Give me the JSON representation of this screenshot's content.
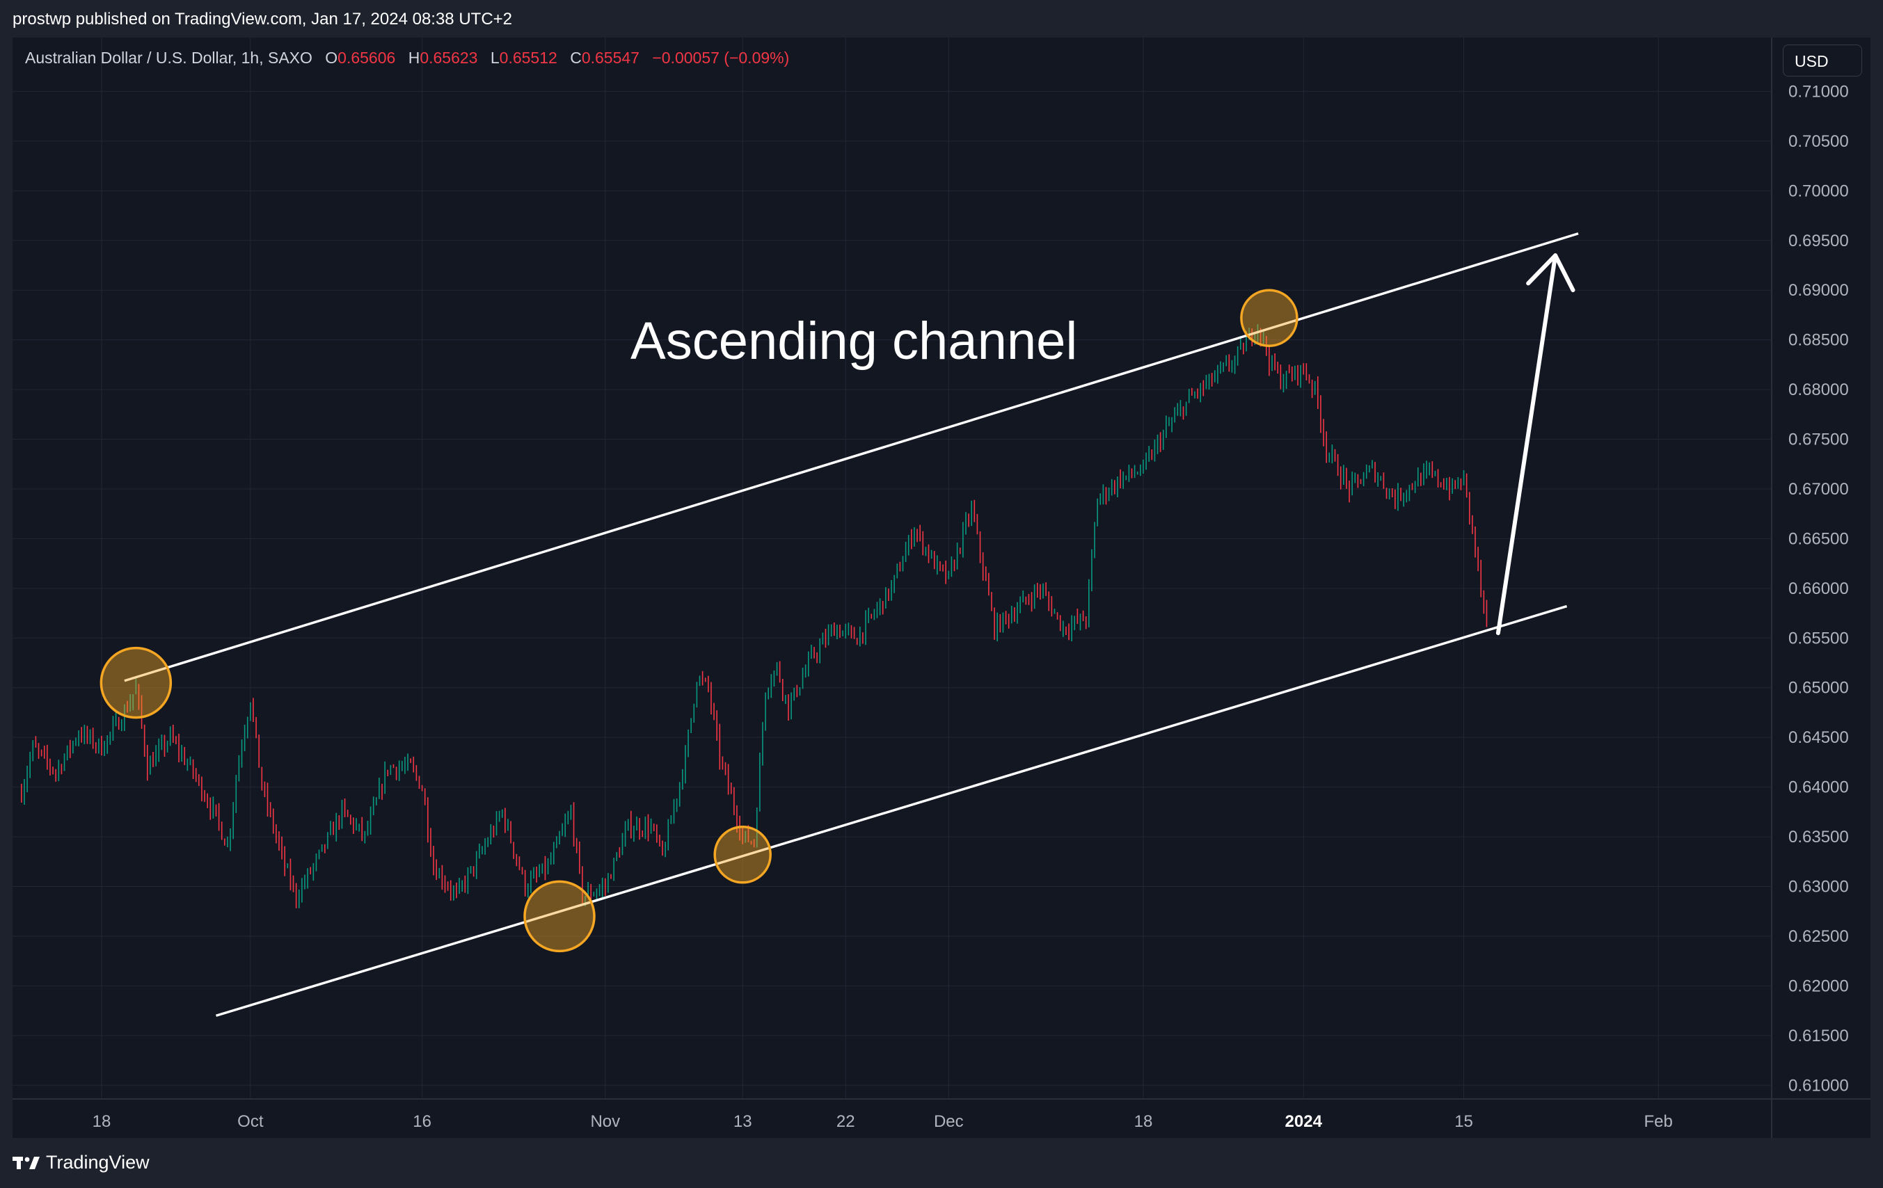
{
  "header": {
    "publish_line": "prostwp published on TradingView.com, Jan 17, 2024 08:38 UTC+2"
  },
  "legend": {
    "symbol": "Australian Dollar / U.S. Dollar, 1h, SAXO",
    "open_label": "O",
    "open": "0.65606",
    "high_label": "H",
    "high": "0.65623",
    "low_label": "L",
    "low": "0.65512",
    "close_label": "C",
    "close": "0.65547",
    "change": "−0.00057 (−0.09%)"
  },
  "currency_button": "USD",
  "footer": {
    "brand": "TradingView"
  },
  "annotation": {
    "text": "Ascending channel"
  },
  "colors": {
    "background": "#131722",
    "up": "#089981",
    "down": "#f23645",
    "grid": "#232734",
    "channel": "#ffffff",
    "marker": "#f5a623"
  },
  "chart_data": {
    "type": "candlestick",
    "title": "Australian Dollar / U.S. Dollar, 1h, SAXO",
    "xlabel": "",
    "ylabel": "",
    "ylim": [
      0.6075,
      0.7115
    ],
    "y_ticks": [
      "0.71000",
      "0.70500",
      "0.70000",
      "0.69500",
      "0.69000",
      "0.68500",
      "0.68000",
      "0.67500",
      "0.67000",
      "0.66500",
      "0.66000",
      "0.65500",
      "0.65000",
      "0.64500",
      "0.64000",
      "0.63500",
      "0.63000",
      "0.62500",
      "0.62000",
      "0.61500",
      "0.61000"
    ],
    "x_ticks": [
      {
        "label": "18",
        "date": "2023-09-18"
      },
      {
        "label": "Oct",
        "date": "2023-10-01"
      },
      {
        "label": "16",
        "date": "2023-10-16"
      },
      {
        "label": "Nov",
        "date": "2023-11-01"
      },
      {
        "label": "13",
        "date": "2023-11-13"
      },
      {
        "label": "22",
        "date": "2023-11-22"
      },
      {
        "label": "Dec",
        "date": "2023-12-01"
      },
      {
        "label": "18",
        "date": "2023-12-18"
      },
      {
        "label": "2024",
        "date": "2024-01-01",
        "bold": true
      },
      {
        "label": "15",
        "date": "2024-01-15"
      },
      {
        "label": "Feb",
        "date": "2024-02-01"
      }
    ],
    "price_path": [
      {
        "date": "2023-09-11",
        "price": 0.6395
      },
      {
        "date": "2023-09-12",
        "price": 0.644
      },
      {
        "date": "2023-09-14",
        "price": 0.6415
      },
      {
        "date": "2023-09-16",
        "price": 0.6455
      },
      {
        "date": "2023-09-18",
        "price": 0.644
      },
      {
        "date": "2023-09-20",
        "price": 0.6475
      },
      {
        "date": "2023-09-21",
        "price": 0.65
      },
      {
        "date": "2023-09-22",
        "price": 0.642
      },
      {
        "date": "2023-09-24",
        "price": 0.645
      },
      {
        "date": "2023-09-26",
        "price": 0.6415
      },
      {
        "date": "2023-09-28",
        "price": 0.637
      },
      {
        "date": "2023-09-29",
        "price": 0.634
      },
      {
        "date": "2023-09-30",
        "price": 0.643
      },
      {
        "date": "2023-10-01",
        "price": 0.649
      },
      {
        "date": "2023-10-02",
        "price": 0.64
      },
      {
        "date": "2023-10-04",
        "price": 0.632
      },
      {
        "date": "2023-10-05",
        "price": 0.629
      },
      {
        "date": "2023-10-07",
        "price": 0.633
      },
      {
        "date": "2023-10-09",
        "price": 0.6375
      },
      {
        "date": "2023-10-11",
        "price": 0.635
      },
      {
        "date": "2023-10-13",
        "price": 0.642
      },
      {
        "date": "2023-10-15",
        "price": 0.642
      },
      {
        "date": "2023-10-16",
        "price": 0.64
      },
      {
        "date": "2023-10-17",
        "price": 0.632
      },
      {
        "date": "2023-10-19",
        "price": 0.629
      },
      {
        "date": "2023-10-21",
        "price": 0.633
      },
      {
        "date": "2023-10-23",
        "price": 0.6375
      },
      {
        "date": "2023-10-25",
        "price": 0.63
      },
      {
        "date": "2023-10-27",
        "price": 0.632
      },
      {
        "date": "2023-10-29",
        "price": 0.6375
      },
      {
        "date": "2023-10-30",
        "price": 0.629
      },
      {
        "date": "2023-11-01",
        "price": 0.63
      },
      {
        "date": "2023-11-03",
        "price": 0.636
      },
      {
        "date": "2023-11-05",
        "price": 0.636
      },
      {
        "date": "2023-11-06",
        "price": 0.633
      },
      {
        "date": "2023-11-08",
        "price": 0.643
      },
      {
        "date": "2023-11-09",
        "price": 0.651
      },
      {
        "date": "2023-11-10",
        "price": 0.65
      },
      {
        "date": "2023-11-11",
        "price": 0.643
      },
      {
        "date": "2023-11-12",
        "price": 0.639
      },
      {
        "date": "2023-11-13",
        "price": 0.635
      },
      {
        "date": "2023-11-14",
        "price": 0.6345
      },
      {
        "date": "2023-11-15",
        "price": 0.65
      },
      {
        "date": "2023-11-16",
        "price": 0.652
      },
      {
        "date": "2023-11-17",
        "price": 0.648
      },
      {
        "date": "2023-11-19",
        "price": 0.653
      },
      {
        "date": "2023-11-21",
        "price": 0.656
      },
      {
        "date": "2023-11-23",
        "price": 0.655
      },
      {
        "date": "2023-11-26",
        "price": 0.66
      },
      {
        "date": "2023-11-28",
        "price": 0.666
      },
      {
        "date": "2023-11-30",
        "price": 0.662
      },
      {
        "date": "2023-12-01",
        "price": 0.661
      },
      {
        "date": "2023-12-03",
        "price": 0.668
      },
      {
        "date": "2023-12-05",
        "price": 0.656
      },
      {
        "date": "2023-12-07",
        "price": 0.658
      },
      {
        "date": "2023-12-09",
        "price": 0.66
      },
      {
        "date": "2023-12-11",
        "price": 0.656
      },
      {
        "date": "2023-12-13",
        "price": 0.657
      },
      {
        "date": "2023-12-14",
        "price": 0.669
      },
      {
        "date": "2023-12-16",
        "price": 0.671
      },
      {
        "date": "2023-12-18",
        "price": 0.672
      },
      {
        "date": "2023-12-20",
        "price": 0.676
      },
      {
        "date": "2023-12-22",
        "price": 0.679
      },
      {
        "date": "2023-12-24",
        "price": 0.681
      },
      {
        "date": "2023-12-26",
        "price": 0.683
      },
      {
        "date": "2023-12-28",
        "price": 0.6865
      },
      {
        "date": "2023-12-29",
        "price": 0.683
      },
      {
        "date": "2023-12-30",
        "price": 0.681
      },
      {
        "date": "2024-01-01",
        "price": 0.682
      },
      {
        "date": "2024-01-02",
        "price": 0.68
      },
      {
        "date": "2024-01-03",
        "price": 0.674
      },
      {
        "date": "2024-01-04",
        "price": 0.672
      },
      {
        "date": "2024-01-05",
        "price": 0.67
      },
      {
        "date": "2024-01-07",
        "price": 0.672
      },
      {
        "date": "2024-01-09",
        "price": 0.669
      },
      {
        "date": "2024-01-11",
        "price": 0.671
      },
      {
        "date": "2024-01-12",
        "price": 0.6715
      },
      {
        "date": "2024-01-14",
        "price": 0.67
      },
      {
        "date": "2024-01-15",
        "price": 0.671
      },
      {
        "date": "2024-01-16",
        "price": 0.664
      },
      {
        "date": "2024-01-17",
        "price": 0.6555
      }
    ],
    "channel": {
      "upper": [
        {
          "date": "2023-09-20",
          "price": 0.6507
        },
        {
          "date": "2024-01-25",
          "price": 0.6957
        }
      ],
      "lower": [
        {
          "date": "2023-09-28",
          "price": 0.617
        },
        {
          "date": "2024-01-24",
          "price": 0.6582
        }
      ]
    },
    "touch_points": [
      {
        "date": "2023-09-21",
        "price": 0.6505
      },
      {
        "date": "2023-10-28",
        "price": 0.627
      },
      {
        "date": "2023-11-13",
        "price": 0.6332
      },
      {
        "date": "2023-12-29",
        "price": 0.6872
      }
    ],
    "projection_arrow": {
      "from": {
        "date": "2024-01-18",
        "price": 0.6555
      },
      "to": {
        "date": "2024-01-23",
        "price": 0.6935
      }
    }
  }
}
